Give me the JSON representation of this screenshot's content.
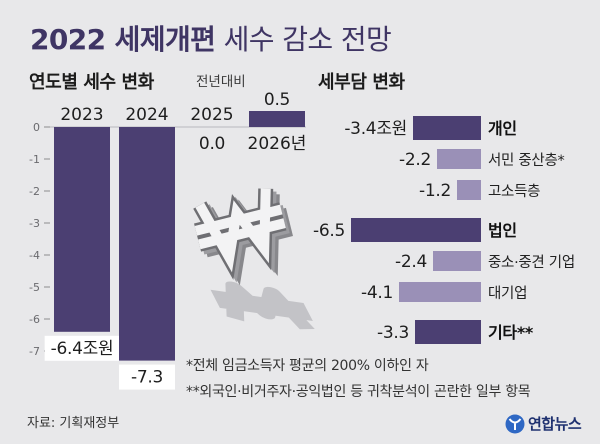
{
  "colors": {
    "background": "#e8e8ea",
    "title": "#3f3564",
    "text": "#222222",
    "bar_dark": "#4b3f72",
    "bar_light": "#9a90b7",
    "logo": "#1f3170"
  },
  "title": {
    "bold": "2022 세제개편",
    "regular": "세수 감소 전망"
  },
  "chart_data": [
    {
      "type": "bar",
      "orientation": "vertical",
      "title": "연도별 세수 변화",
      "subtitle": "전년대비",
      "categories": [
        "2023",
        "2024",
        "2025",
        "2026년"
      ],
      "values": [
        -6.4,
        -7.3,
        0.0,
        0.5
      ],
      "value_labels": [
        "-6.4조원",
        "-7.3",
        "0.0",
        "0.5"
      ],
      "ylim": [
        -7,
        0
      ],
      "yticks": [
        "0",
        "-1",
        "-2",
        "-3",
        "-4",
        "-5",
        "-6",
        "-7"
      ],
      "grid": false
    },
    {
      "type": "bar",
      "orientation": "horizontal",
      "title": "세부담 변화",
      "categories": [
        "개인",
        "서민 중산층*",
        "고소득층",
        "법인",
        "중소·중견 기업",
        "대기업",
        "기타**"
      ],
      "is_group": [
        true,
        false,
        false,
        true,
        false,
        false,
        true
      ],
      "values": [
        -3.4,
        -2.2,
        -1.2,
        -6.5,
        -2.4,
        -4.1,
        -3.3
      ],
      "value_labels": [
        "-3.4조원",
        "-2.2",
        "-1.2",
        "-6.5",
        "-2.4",
        "-4.1",
        "-3.3"
      ],
      "grid": false
    }
  ],
  "footnotes": [
    "*전체 임금소득자 평균의 200% 이하인 자",
    "**외국인·비거주자·공익법인 등 귀착분석이 곤란한 일부 항목"
  ],
  "source": "자료: 기획재정부",
  "logo": {
    "text": "연합뉴스",
    "icon": "yonhap-logo-icon"
  },
  "illustration": {
    "icon": "won-symbol-icon"
  }
}
